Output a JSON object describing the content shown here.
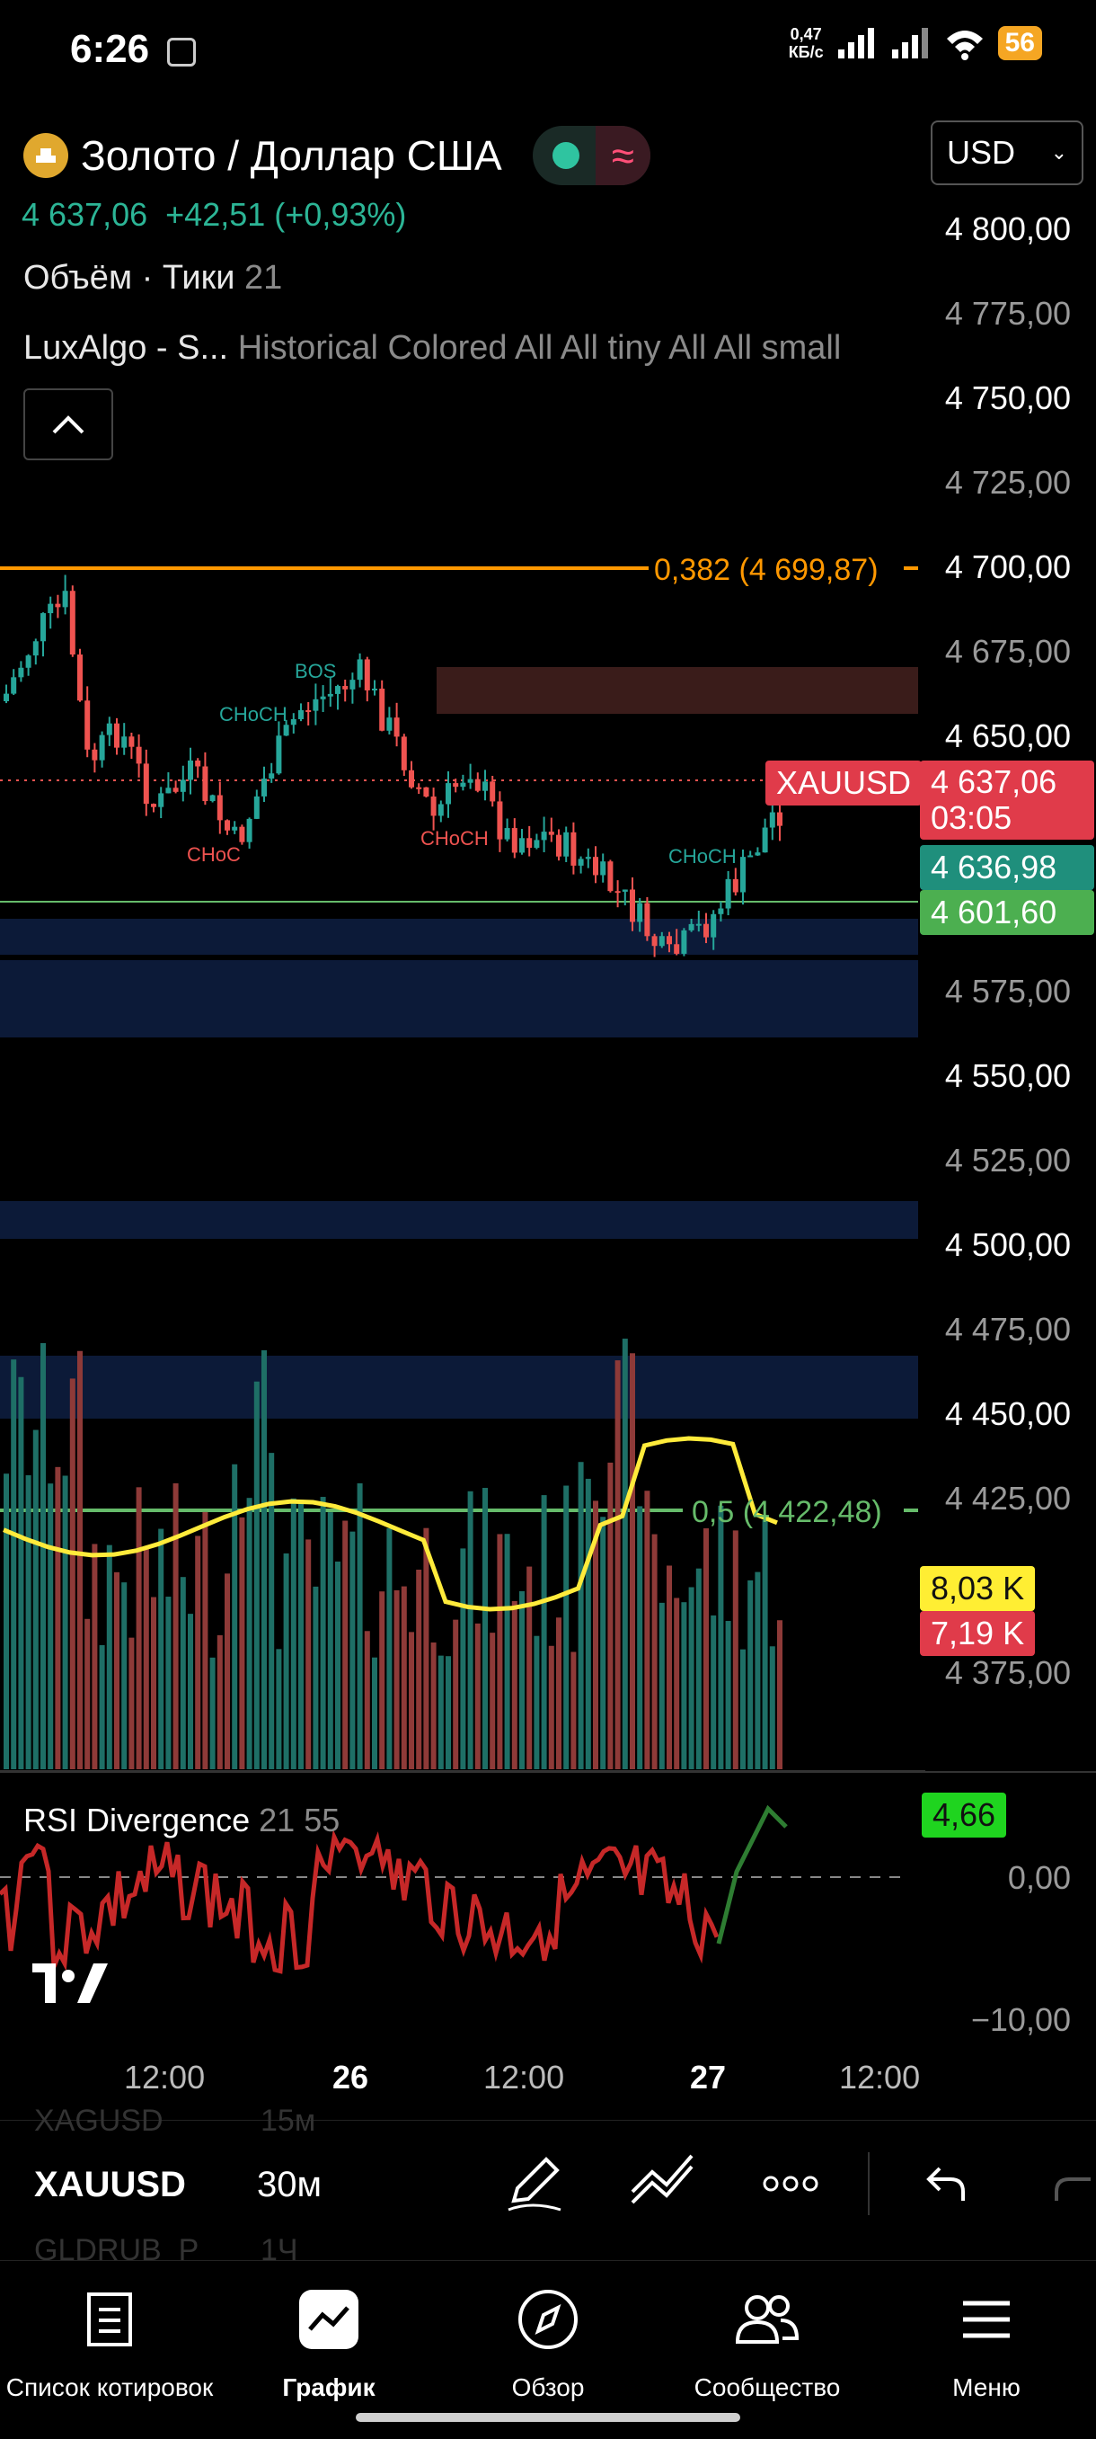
{
  "status": {
    "time": "6:26",
    "net_speed": "0,47",
    "net_unit": "КБ/с",
    "battery": "56"
  },
  "header": {
    "symbol_name": "Золото / Доллар США",
    "price": "4 637,06",
    "change": "+42,51",
    "change_pct": "(+0,93%)",
    "volume_label": "Объём",
    "volume_sep": "·",
    "ticks_label": "Тики",
    "ticks_value": "21",
    "indicator_name": "LuxAlgo - S...",
    "indicator_params": "Historical Colored All All tiny All All small"
  },
  "currency": "USD",
  "price_axis": [
    "4 800,00",
    "4 775,00",
    "4 750,00",
    "4 725,00",
    "4 700,00",
    "4 675,00",
    "4 650,00",
    "4 575,00",
    "4 550,00",
    "4 525,00",
    "4 500,00",
    "4 475,00",
    "4 450,00",
    "4 425,00",
    "4 375,00"
  ],
  "tags": {
    "symbol": "XAUUSD",
    "last_price": "4 637,06",
    "countdown": "03:05",
    "bid": "4 636,98",
    "level": "4 601,60",
    "vol_a": "8,03 K",
    "vol_b": "7,19 K",
    "rsi_value": "4,66"
  },
  "annotations": {
    "fib_382": "0,382 (4 699,87)",
    "fib_05": "0,5 (4 422,48)",
    "bos": "BOS",
    "choch1": "CHoCH",
    "choch2": "CHoC",
    "choch3": "CHoCH",
    "choch4": "CHoCH"
  },
  "rsi": {
    "name": "RSI Divergence",
    "p1": "21",
    "p2": "55",
    "axis": [
      "0,00",
      "−10,00"
    ]
  },
  "time_axis": [
    "12:00",
    "26",
    "12:00",
    "27",
    "12:00"
  ],
  "toolbar": {
    "symbol": "XAUUSD",
    "interval": "30м",
    "ghost_prev_symbol": "XAGUSD",
    "ghost_prev_interval": "15м",
    "ghost_next_symbol": "GLDRUB_P",
    "ghost_next_interval": "1Ч"
  },
  "nav": [
    {
      "label": "Список котировок",
      "icon": "watchlist-icon"
    },
    {
      "label": "График",
      "icon": "chart-icon"
    },
    {
      "label": "Обзор",
      "icon": "compass-icon"
    },
    {
      "label": "Сообщество",
      "icon": "community-icon"
    },
    {
      "label": "Меню",
      "icon": "menu-icon"
    }
  ],
  "colors": {
    "up": "#26a69a",
    "down": "#ef5350",
    "fib_orange": "#ff9800",
    "fib_green": "#66bb6a",
    "zone_blue": "#0d1b3a",
    "vol_ma": "#ffeb3b"
  }
}
